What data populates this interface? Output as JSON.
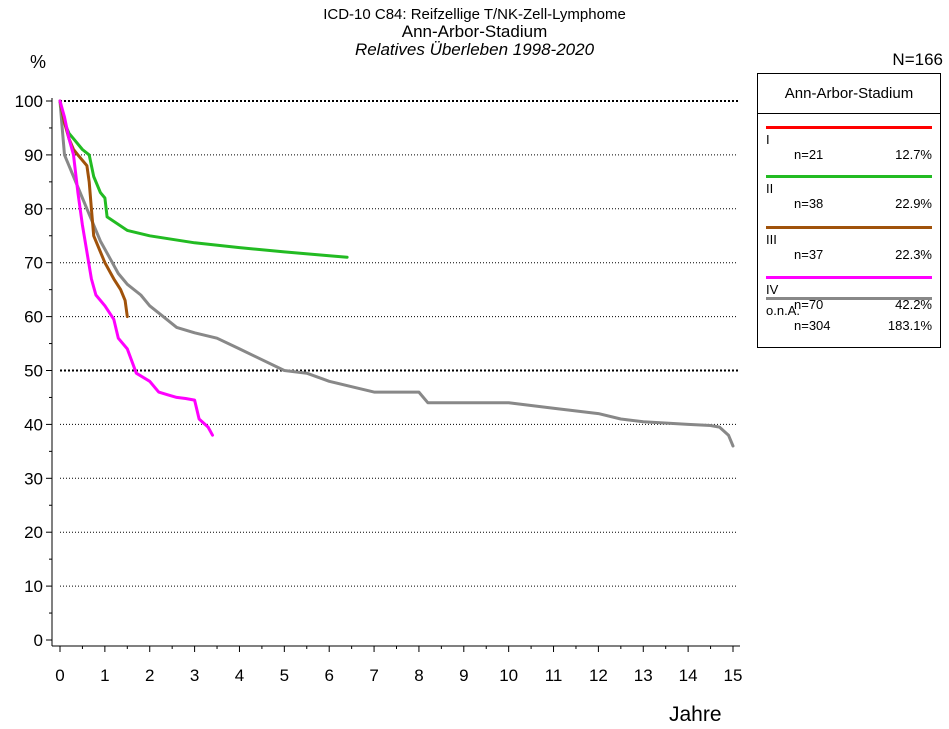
{
  "title": {
    "line1": "ICD-10 C84: Reifzellige T/NK-Zell-Lymphome",
    "line2": "Ann-Arbor-Stadium",
    "line3": "Relatives Überleben 1998-2020"
  },
  "y_unit_label": "%",
  "n_total": "N=166",
  "x_unit_label": "Jahre",
  "legend": {
    "title": "Ann-Arbor-Stadium",
    "items": [
      {
        "name": "I",
        "n": "n=21",
        "pct": "12.7%",
        "color": "#ff0000"
      },
      {
        "name": "II",
        "n": "n=38",
        "pct": "22.9%",
        "color": "#22bb22"
      },
      {
        "name": "III",
        "n": "n=37",
        "pct": "22.3%",
        "color": "#a0520a"
      },
      {
        "name": "IV",
        "n": "n=70",
        "pct": "42.2%",
        "color": "#ff00ff"
      },
      {
        "name": "o.n.A.",
        "n": "n=304",
        "pct": "183.1%",
        "color": "#888888"
      }
    ]
  },
  "chart_data": {
    "type": "line",
    "xlabel": "Jahre",
    "ylabel": "%",
    "xlim": [
      0,
      15
    ],
    "ylim": [
      0,
      100
    ],
    "x_ticks": [
      "0",
      "1",
      "2",
      "3",
      "4",
      "5",
      "6",
      "7",
      "8",
      "9",
      "10",
      "11",
      "12",
      "13",
      "14",
      "15"
    ],
    "y_ticks": [
      "0",
      "10",
      "20",
      "30",
      "40",
      "50",
      "60",
      "70",
      "80",
      "90",
      "100"
    ],
    "dotted_gridlines": [
      10,
      20,
      30,
      40,
      50,
      60,
      70,
      80,
      90,
      100
    ],
    "bold_gridlines": [
      50,
      100
    ],
    "series": [
      {
        "name": "II",
        "color": "#22bb22",
        "x": [
          0,
          0.1,
          0.2,
          0.3,
          0.5,
          0.65,
          0.75,
          0.9,
          1.0,
          1.05,
          1.5,
          2.0,
          3.0,
          4.0,
          5.0,
          6.0,
          6.4
        ],
        "y": [
          100,
          96,
          94,
          93,
          91,
          90,
          86,
          83,
          82,
          78.5,
          76,
          75,
          73.7,
          72.8,
          72,
          71.3,
          71
        ]
      },
      {
        "name": "III",
        "color": "#a0520a",
        "x": [
          0,
          0.1,
          0.2,
          0.3,
          0.4,
          0.5,
          0.6,
          0.65,
          0.7,
          0.75,
          1.0,
          1.2,
          1.35,
          1.45,
          1.5
        ],
        "y": [
          100,
          96,
          93,
          91,
          90,
          89,
          88,
          85,
          80,
          75,
          70,
          67,
          65,
          63,
          60
        ]
      },
      {
        "name": "IV",
        "color": "#ff00ff",
        "x": [
          0,
          0.1,
          0.2,
          0.3,
          0.4,
          0.5,
          0.6,
          0.7,
          0.8,
          1.0,
          1.2,
          1.3,
          1.5,
          1.7,
          2.0,
          2.2,
          2.4,
          2.6,
          2.8,
          3.0,
          3.1,
          3.3,
          3.4
        ],
        "y": [
          100,
          97,
          93,
          90,
          83,
          77,
          72,
          67,
          64,
          62,
          59.5,
          56,
          54,
          49.5,
          48,
          46,
          45.5,
          45,
          44.8,
          44.5,
          41,
          39.5,
          38
        ]
      },
      {
        "name": "o.n.A.",
        "color": "#888888",
        "x": [
          0,
          0.05,
          0.1,
          0.2,
          0.3,
          0.5,
          0.7,
          0.9,
          1.1,
          1.3,
          1.5,
          1.8,
          2.0,
          2.3,
          2.6,
          3.0,
          3.5,
          4.0,
          4.5,
          5.0,
          5.5,
          6.0,
          6.5,
          7.0,
          8.0,
          8.2,
          9.0,
          10.0,
          10.5,
          11.0,
          12.0,
          12.5,
          13.0,
          14.0,
          14.5,
          14.7,
          14.9,
          15.0
        ],
        "y": [
          100,
          95,
          90,
          88,
          86,
          82,
          78,
          74,
          71,
          68,
          66,
          64,
          62,
          60,
          58,
          57,
          56,
          54,
          52,
          50,
          49.5,
          48,
          47,
          46,
          46,
          44,
          44,
          44,
          43.5,
          43,
          42,
          41,
          40.5,
          40,
          39.8,
          39.5,
          38,
          36
        ]
      }
    ]
  }
}
